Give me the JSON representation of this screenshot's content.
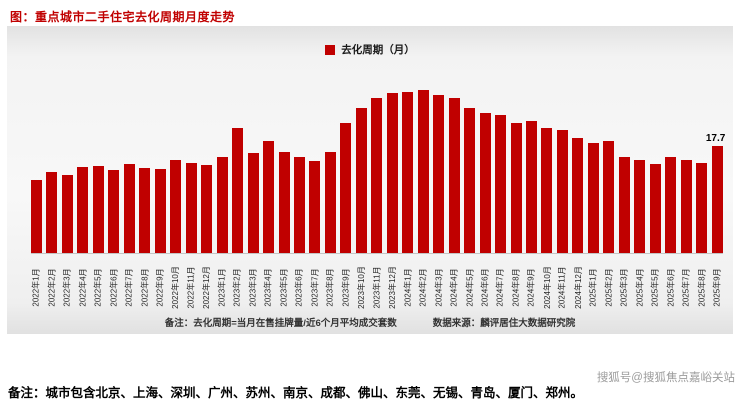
{
  "page": {
    "title": "图：重点城市二手住宅去化周期月度走势",
    "bottom_note": "备注：城市包含北京、上海、深圳、广州、苏州、南京、成都、佛山、东莞、无锡、青岛、厦门、郑州。",
    "watermark": "搜狐号@搜狐焦点嘉峪关站"
  },
  "chart_notes": {
    "left": "备注：去化周期=当月在售挂牌量/近6个月平均成交套数",
    "source": "数据来源：麟评居住大数据研究院"
  },
  "colors": {
    "accent_red": "#c00000",
    "chart_background_gray": "#f2f2f2",
    "watermark_gray": "#9c9c9c"
  },
  "chart_data": {
    "type": "bar",
    "title": "图：重点城市二手住宅去化周期月度走势",
    "legend": [
      "去化周期（月）"
    ],
    "legend_position": "top-center",
    "xlabel": "",
    "ylabel": "去化周期（月）",
    "ylim": [
      0,
      28
    ],
    "grid": false,
    "bar_color": "#c00000",
    "categories": [
      "2022年1月",
      "2022年2月",
      "2022年3月",
      "2022年4月",
      "2022年5月",
      "2022年6月",
      "2022年7月",
      "2022年8月",
      "2022年9月",
      "2022年10月",
      "2022年11月",
      "2022年12月",
      "2023年1月",
      "2023年2月",
      "2023年3月",
      "2023年4月",
      "2023年5月",
      "2023年6月",
      "2023年7月",
      "2023年8月",
      "2023年9月",
      "2023年10月",
      "2023年11月",
      "2023年12月",
      "2024年1月",
      "2024年2月",
      "2024年3月",
      "2024年4月",
      "2024年5月",
      "2024年6月",
      "2024年7月",
      "2024年8月",
      "2024年9月",
      "2024年10月",
      "2024年11月",
      "2024年12月",
      "2025年1月",
      "2025年2月",
      "2025年3月",
      "2025年4月",
      "2025年5月",
      "2025年6月",
      "2025年7月",
      "2025年8月",
      "2025年9月"
    ],
    "values": [
      12.0,
      13.3,
      12.8,
      14.1,
      14.4,
      13.6,
      14.6,
      14.0,
      13.8,
      15.3,
      14.9,
      14.5,
      15.8,
      20.6,
      16.4,
      18.5,
      16.6,
      15.8,
      15.1,
      16.6,
      21.4,
      23.9,
      25.5,
      26.3,
      26.6,
      26.9,
      26.0,
      25.5,
      23.9,
      23.1,
      22.7,
      21.4,
      21.8,
      20.6,
      20.2,
      19.0,
      18.2,
      18.5,
      15.8,
      15.3,
      14.6,
      15.8,
      15.3,
      14.9,
      17.7
    ],
    "labeled_points": [
      {
        "index": 44,
        "label": "17.7"
      }
    ]
  }
}
